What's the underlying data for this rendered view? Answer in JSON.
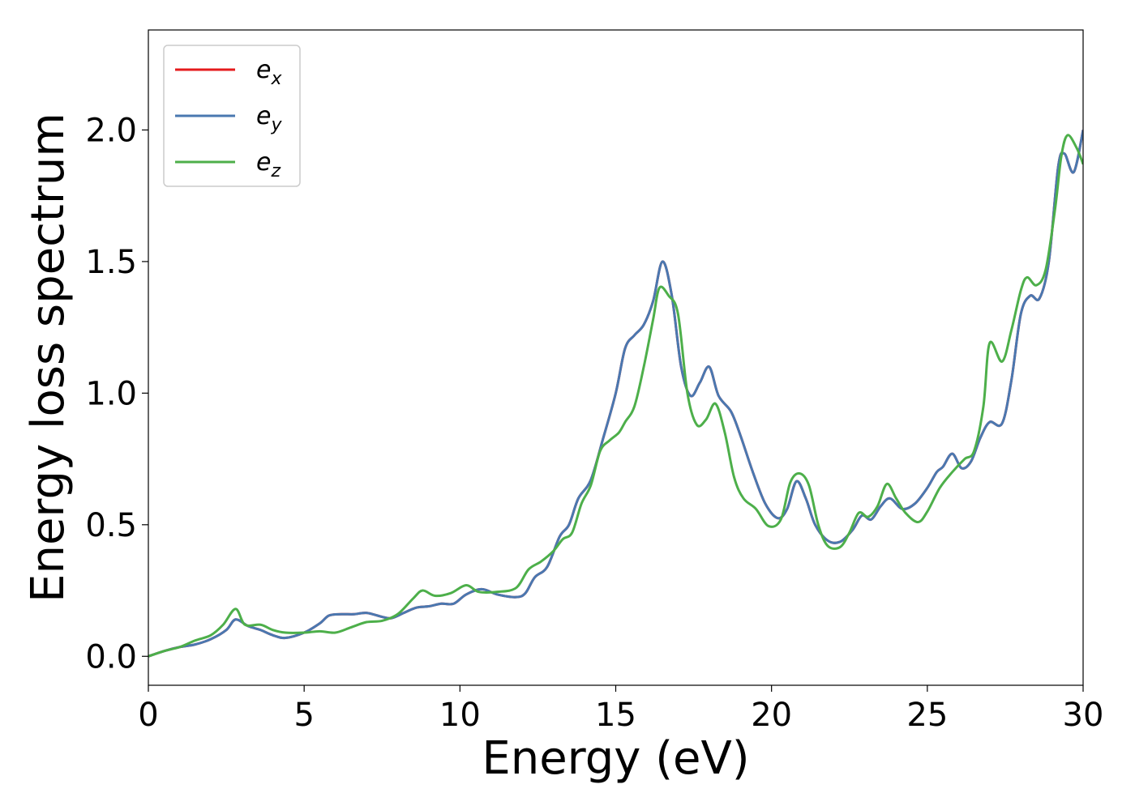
{
  "chart_data": {
    "type": "line",
    "title": "",
    "xlabel": "Energy (eV)",
    "ylabel": "Energy loss spectrum",
    "xlim": [
      0,
      30
    ],
    "ylim": [
      -0.11,
      2.38
    ],
    "x_ticks": [
      0,
      5,
      10,
      15,
      20,
      25,
      30
    ],
    "y_ticks": [
      0.0,
      0.5,
      1.0,
      1.5,
      2.0
    ],
    "x_tick_labels": [
      "0",
      "5",
      "10",
      "15",
      "20",
      "25",
      "30"
    ],
    "y_tick_labels": [
      "0.0",
      "0.5",
      "1.0",
      "1.5",
      "2.0"
    ],
    "grid": false,
    "legend_position": "top-left",
    "series": [
      {
        "name": "e_x",
        "legend_base": "e",
        "legend_sub": "x",
        "color": "#e41a1c",
        "points": [
          [
            0,
            0
          ],
          [
            0.5,
            0.02
          ],
          [
            1,
            0.035
          ],
          [
            1.5,
            0.045
          ],
          [
            2,
            0.065
          ],
          [
            2.5,
            0.1
          ],
          [
            2.8,
            0.14
          ],
          [
            3.2,
            0.115
          ],
          [
            3.6,
            0.1
          ],
          [
            4.0,
            0.08
          ],
          [
            4.4,
            0.07
          ],
          [
            5.0,
            0.09
          ],
          [
            5.5,
            0.125
          ],
          [
            5.8,
            0.155
          ],
          [
            6.2,
            0.16
          ],
          [
            6.6,
            0.16
          ],
          [
            7.0,
            0.165
          ],
          [
            7.5,
            0.15
          ],
          [
            7.8,
            0.145
          ],
          [
            8.2,
            0.165
          ],
          [
            8.6,
            0.185
          ],
          [
            9.0,
            0.19
          ],
          [
            9.4,
            0.2
          ],
          [
            9.8,
            0.2
          ],
          [
            10.2,
            0.235
          ],
          [
            10.7,
            0.255
          ],
          [
            11.2,
            0.235
          ],
          [
            11.8,
            0.225
          ],
          [
            12.1,
            0.24
          ],
          [
            12.4,
            0.3
          ],
          [
            12.8,
            0.34
          ],
          [
            13.2,
            0.455
          ],
          [
            13.5,
            0.5
          ],
          [
            13.8,
            0.6
          ],
          [
            14.2,
            0.67
          ],
          [
            14.6,
            0.83
          ],
          [
            15.0,
            1.0
          ],
          [
            15.3,
            1.17
          ],
          [
            15.6,
            1.22
          ],
          [
            15.9,
            1.26
          ],
          [
            16.2,
            1.35
          ],
          [
            16.5,
            1.5
          ],
          [
            16.8,
            1.37
          ],
          [
            17.1,
            1.1
          ],
          [
            17.4,
            0.99
          ],
          [
            17.7,
            1.04
          ],
          [
            18.0,
            1.1
          ],
          [
            18.3,
            0.99
          ],
          [
            18.7,
            0.93
          ],
          [
            19.0,
            0.84
          ],
          [
            19.4,
            0.7
          ],
          [
            19.8,
            0.58
          ],
          [
            20.2,
            0.525
          ],
          [
            20.5,
            0.56
          ],
          [
            20.8,
            0.665
          ],
          [
            21.1,
            0.6
          ],
          [
            21.4,
            0.5
          ],
          [
            21.8,
            0.44
          ],
          [
            22.2,
            0.435
          ],
          [
            22.6,
            0.48
          ],
          [
            22.9,
            0.535
          ],
          [
            23.2,
            0.52
          ],
          [
            23.5,
            0.57
          ],
          [
            23.8,
            0.6
          ],
          [
            24.2,
            0.56
          ],
          [
            24.6,
            0.58
          ],
          [
            25.0,
            0.64
          ],
          [
            25.3,
            0.7
          ],
          [
            25.5,
            0.72
          ],
          [
            25.8,
            0.77
          ],
          [
            26.1,
            0.715
          ],
          [
            26.4,
            0.74
          ],
          [
            26.7,
            0.83
          ],
          [
            27.0,
            0.89
          ],
          [
            27.4,
            0.885
          ],
          [
            27.7,
            1.05
          ],
          [
            28.0,
            1.3
          ],
          [
            28.3,
            1.37
          ],
          [
            28.6,
            1.36
          ],
          [
            28.9,
            1.5
          ],
          [
            29.2,
            1.86
          ],
          [
            29.4,
            1.91
          ],
          [
            29.7,
            1.84
          ],
          [
            30,
            2.0
          ]
        ]
      },
      {
        "name": "e_y",
        "legend_base": "e",
        "legend_sub": "y",
        "color": "#4a78b0",
        "points": [
          [
            0,
            0
          ],
          [
            0.5,
            0.02
          ],
          [
            1,
            0.035
          ],
          [
            1.5,
            0.045
          ],
          [
            2,
            0.065
          ],
          [
            2.5,
            0.1
          ],
          [
            2.8,
            0.14
          ],
          [
            3.2,
            0.115
          ],
          [
            3.6,
            0.1
          ],
          [
            4.0,
            0.08
          ],
          [
            4.4,
            0.07
          ],
          [
            5.0,
            0.09
          ],
          [
            5.5,
            0.125
          ],
          [
            5.8,
            0.155
          ],
          [
            6.2,
            0.16
          ],
          [
            6.6,
            0.16
          ],
          [
            7.0,
            0.165
          ],
          [
            7.5,
            0.15
          ],
          [
            7.8,
            0.145
          ],
          [
            8.2,
            0.165
          ],
          [
            8.6,
            0.185
          ],
          [
            9.0,
            0.19
          ],
          [
            9.4,
            0.2
          ],
          [
            9.8,
            0.2
          ],
          [
            10.2,
            0.235
          ],
          [
            10.7,
            0.255
          ],
          [
            11.2,
            0.235
          ],
          [
            11.8,
            0.225
          ],
          [
            12.1,
            0.24
          ],
          [
            12.4,
            0.3
          ],
          [
            12.8,
            0.34
          ],
          [
            13.2,
            0.455
          ],
          [
            13.5,
            0.5
          ],
          [
            13.8,
            0.6
          ],
          [
            14.2,
            0.67
          ],
          [
            14.6,
            0.83
          ],
          [
            15.0,
            1.0
          ],
          [
            15.3,
            1.17
          ],
          [
            15.6,
            1.22
          ],
          [
            15.9,
            1.26
          ],
          [
            16.2,
            1.35
          ],
          [
            16.5,
            1.5
          ],
          [
            16.8,
            1.37
          ],
          [
            17.1,
            1.1
          ],
          [
            17.4,
            0.99
          ],
          [
            17.7,
            1.04
          ],
          [
            18.0,
            1.1
          ],
          [
            18.3,
            0.99
          ],
          [
            18.7,
            0.93
          ],
          [
            19.0,
            0.84
          ],
          [
            19.4,
            0.7
          ],
          [
            19.8,
            0.58
          ],
          [
            20.2,
            0.525
          ],
          [
            20.5,
            0.56
          ],
          [
            20.8,
            0.665
          ],
          [
            21.1,
            0.6
          ],
          [
            21.4,
            0.5
          ],
          [
            21.8,
            0.44
          ],
          [
            22.2,
            0.435
          ],
          [
            22.6,
            0.48
          ],
          [
            22.9,
            0.535
          ],
          [
            23.2,
            0.52
          ],
          [
            23.5,
            0.57
          ],
          [
            23.8,
            0.6
          ],
          [
            24.2,
            0.56
          ],
          [
            24.6,
            0.58
          ],
          [
            25.0,
            0.64
          ],
          [
            25.3,
            0.7
          ],
          [
            25.5,
            0.72
          ],
          [
            25.8,
            0.77
          ],
          [
            26.1,
            0.715
          ],
          [
            26.4,
            0.74
          ],
          [
            26.7,
            0.83
          ],
          [
            27.0,
            0.89
          ],
          [
            27.4,
            0.885
          ],
          [
            27.7,
            1.05
          ],
          [
            28.0,
            1.3
          ],
          [
            28.3,
            1.37
          ],
          [
            28.6,
            1.36
          ],
          [
            28.9,
            1.5
          ],
          [
            29.2,
            1.86
          ],
          [
            29.4,
            1.91
          ],
          [
            29.7,
            1.84
          ],
          [
            30,
            2.0
          ]
        ]
      },
      {
        "name": "e_z",
        "legend_base": "e",
        "legend_sub": "z",
        "color": "#4daf4a",
        "points": [
          [
            0,
            0
          ],
          [
            0.5,
            0.02
          ],
          [
            1,
            0.035
          ],
          [
            1.5,
            0.06
          ],
          [
            2,
            0.08
          ],
          [
            2.4,
            0.12
          ],
          [
            2.8,
            0.18
          ],
          [
            3.1,
            0.12
          ],
          [
            3.6,
            0.12
          ],
          [
            4.0,
            0.1
          ],
          [
            4.4,
            0.09
          ],
          [
            5.0,
            0.09
          ],
          [
            5.5,
            0.095
          ],
          [
            6.0,
            0.09
          ],
          [
            6.5,
            0.11
          ],
          [
            7.0,
            0.13
          ],
          [
            7.5,
            0.135
          ],
          [
            8.0,
            0.16
          ],
          [
            8.5,
            0.22
          ],
          [
            8.8,
            0.25
          ],
          [
            9.2,
            0.23
          ],
          [
            9.7,
            0.24
          ],
          [
            10.2,
            0.27
          ],
          [
            10.6,
            0.245
          ],
          [
            11.2,
            0.245
          ],
          [
            11.8,
            0.26
          ],
          [
            12.2,
            0.33
          ],
          [
            12.6,
            0.36
          ],
          [
            13.0,
            0.4
          ],
          [
            13.3,
            0.445
          ],
          [
            13.6,
            0.47
          ],
          [
            13.9,
            0.58
          ],
          [
            14.2,
            0.65
          ],
          [
            14.5,
            0.78
          ],
          [
            14.8,
            0.82
          ],
          [
            15.1,
            0.85
          ],
          [
            15.3,
            0.89
          ],
          [
            15.6,
            0.95
          ],
          [
            15.9,
            1.1
          ],
          [
            16.2,
            1.28
          ],
          [
            16.4,
            1.4
          ],
          [
            16.7,
            1.37
          ],
          [
            17.0,
            1.3
          ],
          [
            17.3,
            1.0
          ],
          [
            17.6,
            0.88
          ],
          [
            17.9,
            0.9
          ],
          [
            18.2,
            0.96
          ],
          [
            18.5,
            0.85
          ],
          [
            18.8,
            0.68
          ],
          [
            19.1,
            0.6
          ],
          [
            19.5,
            0.56
          ],
          [
            19.9,
            0.495
          ],
          [
            20.3,
            0.52
          ],
          [
            20.6,
            0.66
          ],
          [
            20.9,
            0.695
          ],
          [
            21.2,
            0.65
          ],
          [
            21.5,
            0.5
          ],
          [
            21.8,
            0.42
          ],
          [
            22.2,
            0.415
          ],
          [
            22.5,
            0.47
          ],
          [
            22.8,
            0.545
          ],
          [
            23.1,
            0.53
          ],
          [
            23.4,
            0.57
          ],
          [
            23.7,
            0.655
          ],
          [
            24.0,
            0.6
          ],
          [
            24.3,
            0.545
          ],
          [
            24.7,
            0.51
          ],
          [
            25.0,
            0.55
          ],
          [
            25.4,
            0.64
          ],
          [
            25.8,
            0.7
          ],
          [
            26.2,
            0.75
          ],
          [
            26.5,
            0.78
          ],
          [
            26.8,
            0.95
          ],
          [
            27.0,
            1.19
          ],
          [
            27.4,
            1.12
          ],
          [
            27.7,
            1.24
          ],
          [
            28.0,
            1.39
          ],
          [
            28.2,
            1.44
          ],
          [
            28.5,
            1.41
          ],
          [
            28.8,
            1.47
          ],
          [
            29.1,
            1.7
          ],
          [
            29.3,
            1.9
          ],
          [
            29.5,
            1.98
          ],
          [
            29.8,
            1.93
          ],
          [
            30,
            1.87
          ]
        ]
      }
    ]
  }
}
